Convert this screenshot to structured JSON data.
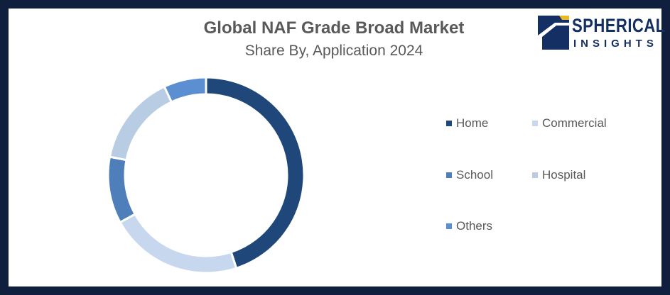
{
  "header": {
    "title": "Global NAF Grade Broad Market",
    "subtitle": "Share By, Application 2024"
  },
  "logo": {
    "line1": "SPHERICAL",
    "line2": "INSIGHTS",
    "brand_color": "#142f63"
  },
  "chart_data": {
    "type": "pie",
    "variant": "donut",
    "title": "",
    "categories": [
      "Home",
      "Commercial",
      "School",
      "Hospital",
      "Others"
    ],
    "values": [
      45,
      22,
      11,
      15,
      7
    ],
    "unit": "%",
    "colors": [
      "#1f477a",
      "#c7d8ee",
      "#4e7fbb",
      "#b8cce4",
      "#5b8fd1"
    ],
    "legend_position": "right"
  }
}
